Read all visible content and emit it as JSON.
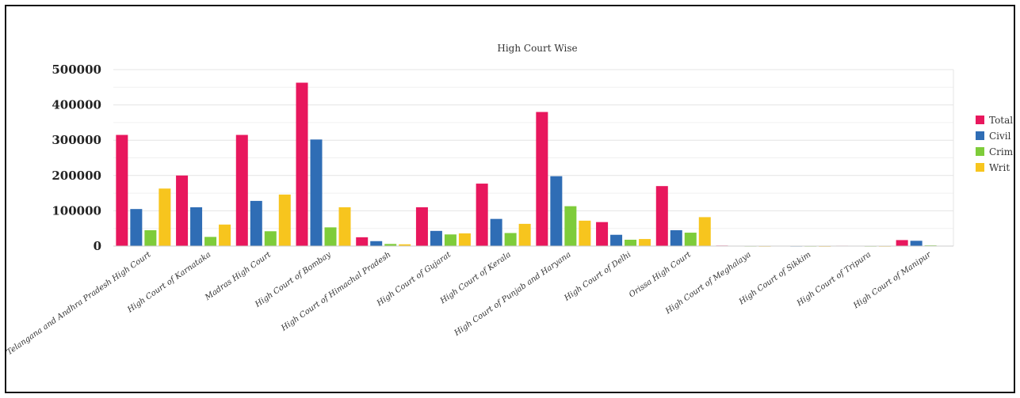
{
  "chart_data": {
    "type": "bar",
    "title": "High Court Wise",
    "xlabel": "",
    "ylabel": "",
    "ylim": [
      0,
      500000
    ],
    "yticks": [
      0,
      100000,
      200000,
      300000,
      400000,
      500000
    ],
    "grid": true,
    "legend_position": "right",
    "categories": [
      "High Court of Telangana and Andhra Pradesh High Court",
      "High Court of Karnataka",
      "Madras High Court",
      "High Court of Bombay",
      "High Court of Himachal Pradesh",
      "High Court of Gujarat",
      "High Court of Kerala",
      "High Court of Punjab and Haryana",
      "High Court of Delhi",
      "Orissa High Court",
      "High Court of Meghalaya",
      "High Court of Sikkim",
      "High Court of Tripura",
      "High Court of Manipur"
    ],
    "series": [
      {
        "name": "Total",
        "color": "#e8175d",
        "values": [
          315000,
          200000,
          315000,
          463000,
          25000,
          110000,
          177000,
          380000,
          68000,
          170000,
          1500,
          800,
          1200,
          17000
        ]
      },
      {
        "name": "Civil",
        "color": "#2f6db5",
        "values": [
          105000,
          110000,
          128000,
          302000,
          14000,
          43000,
          77000,
          198000,
          32000,
          45000,
          900,
          400,
          700,
          15000
        ]
      },
      {
        "name": "Crim",
        "color": "#7ecc3a",
        "values": [
          45000,
          26000,
          42000,
          53000,
          6000,
          33000,
          37000,
          113000,
          18000,
          38000,
          400,
          300,
          300,
          2000
        ]
      },
      {
        "name": "Writ",
        "color": "#f7c51e",
        "values": [
          163000,
          61000,
          146000,
          110000,
          5000,
          36000,
          63000,
          72000,
          20000,
          82000,
          200,
          100,
          200,
          1000
        ]
      }
    ]
  }
}
